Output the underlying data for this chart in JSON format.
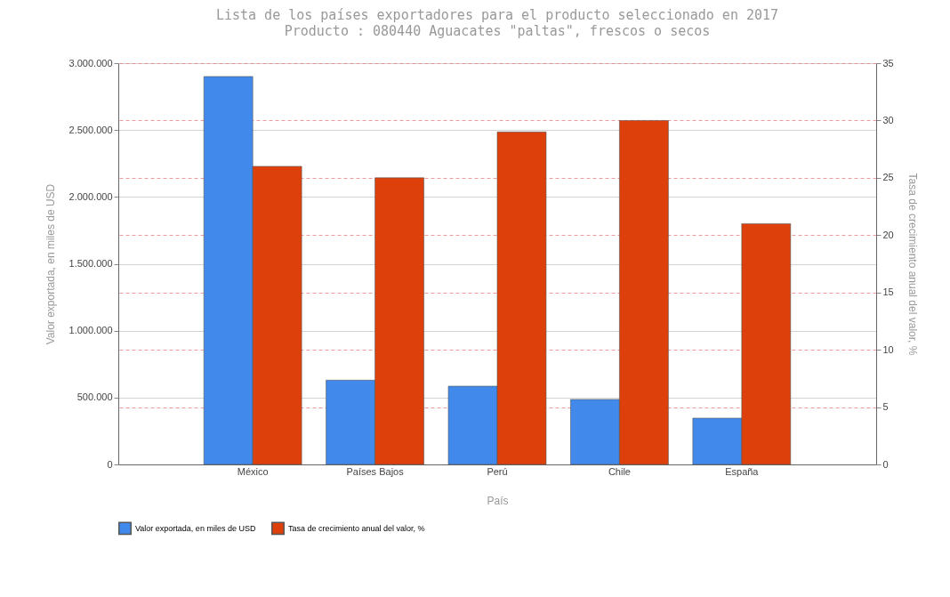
{
  "chart_data": {
    "type": "bar",
    "title": "Lista de los países exportadores para el producto seleccionado en 2017",
    "subtitle": "Producto : 080440 Aguacates \"paltas\", frescos o secos",
    "xlabel": "País",
    "ylabel": "Valor exportada, en miles de USD",
    "y2label": "Tasa de crecimiento anual del valor, %",
    "categories": [
      "México",
      "Países Bajos",
      "Perú",
      "Chile",
      "España"
    ],
    "series": [
      {
        "name": "Valor exportada, en miles de USD",
        "color": "#4189eb",
        "values": [
          2900000,
          630000,
          585000,
          486000,
          346000
        ]
      },
      {
        "name": "Tasa de crecimiento anual del valor, %",
        "color": "#de400b",
        "axis": "y2",
        "values": [
          26,
          25,
          29,
          30,
          21
        ]
      }
    ],
    "ylim": [
      0,
      3000000
    ],
    "yticks": [
      {
        "value": 0,
        "label": "0"
      },
      {
        "value": 500000,
        "label": "500.000"
      },
      {
        "value": 1000000,
        "label": "1.000.000"
      },
      {
        "value": 1500000,
        "label": "1.500.000"
      },
      {
        "value": 2000000,
        "label": "2.000.000"
      },
      {
        "value": 2500000,
        "label": "2.500.000"
      },
      {
        "value": 3000000,
        "label": "3.000.000"
      }
    ],
    "y2lim": [
      0,
      35
    ],
    "y2ticks": [
      0,
      5,
      10,
      15,
      20,
      25,
      30,
      35
    ],
    "grid": true,
    "legend": "bottom"
  }
}
